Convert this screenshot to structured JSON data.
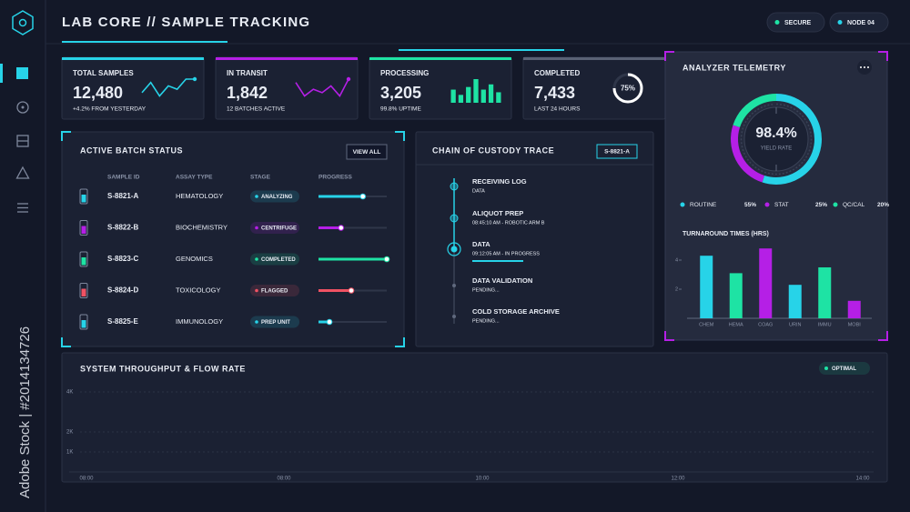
{
  "watermark": "Adobe Stock | #2014134726",
  "header": {
    "title": "LAB CORE // SAMPLE TRACKING",
    "badges": [
      {
        "label": "SECURE",
        "color": "#1ee3a4"
      },
      {
        "label": "NODE 04",
        "color": "#27d3e8"
      }
    ]
  },
  "kpis": [
    {
      "label": "TOTAL SAMPLES",
      "value": "12,480",
      "note": "+4.2% FROM YESTERDAY",
      "color": "#27d3e8",
      "chart": {
        "type": "line",
        "values": [
          3,
          6,
          2,
          5,
          4,
          7,
          7
        ]
      }
    },
    {
      "label": "IN TRANSIT",
      "value": "1,842",
      "note": "12 BATCHES ACTIVE",
      "color": "#b51fe6",
      "chart": {
        "type": "line",
        "values": [
          6,
          2,
          4,
          3,
          5,
          2,
          7
        ]
      }
    },
    {
      "label": "PROCESSING",
      "value": "3,205",
      "note": "99.8% UPTIME",
      "color": "#1ee3a4",
      "chart": {
        "type": "bar",
        "values": [
          5,
          3,
          6,
          9,
          5,
          7,
          4
        ]
      }
    },
    {
      "label": "COMPLETED",
      "value": "7,433",
      "note": "LAST 24 HOURS",
      "color": "#5a6275",
      "chart": {
        "type": "ring",
        "value": 75,
        "value_label": "75%"
      }
    }
  ],
  "batch": {
    "title": "ACTIVE BATCH STATUS",
    "button": "VIEW ALL",
    "columns": [
      "SAMPLE ID",
      "ASSAY TYPE",
      "STAGE",
      "PROGRESS"
    ],
    "rows": [
      {
        "id": "S-8821-A",
        "assay": "HEMATOLOGY",
        "stage": "ANALYZING",
        "progress": 65,
        "color": "#27d3e8"
      },
      {
        "id": "S-8822-B",
        "assay": "BIOCHEMISTRY",
        "stage": "CENTRIFUGE",
        "progress": 33,
        "color": "#b51fe6"
      },
      {
        "id": "S-8823-C",
        "assay": "GENOMICS",
        "stage": "COMPLETED",
        "progress": 100,
        "color": "#1ee3a4"
      },
      {
        "id": "S-8824-D",
        "assay": "TOXICOLOGY",
        "stage": "FLAGGED",
        "progress": 48,
        "color": "#f05263"
      },
      {
        "id": "S-8825-E",
        "assay": "IMMUNOLOGY",
        "stage": "PREP UNIT",
        "progress": 16,
        "color": "#27d3e8"
      }
    ]
  },
  "custody": {
    "title": "CHAIN OF CUSTODY TRACE",
    "tag": "S-8821-A",
    "steps": [
      {
        "title": "RECEIVING LOG",
        "detail": "DATA",
        "state": "done"
      },
      {
        "title": "ALIQUOT PREP",
        "detail": "08:45:10 AM - ROBOTIC ARM B",
        "state": "done"
      },
      {
        "title": "DATA",
        "detail": "09:12:05 AM - IN PROGRESS",
        "state": "active"
      },
      {
        "title": "DATA VALIDATION",
        "detail": "PENDING...",
        "state": "pending"
      },
      {
        "title": "COLD STORAGE ARCHIVE",
        "detail": "PENDING...",
        "state": "pending"
      }
    ]
  },
  "telemetry": {
    "title": "ANALYZER TELEMETRY",
    "yield": {
      "value": 98.4,
      "value_label": "98.4%",
      "label": "YIELD RATE"
    },
    "mix": [
      {
        "name": "ROUTINE",
        "value": 55,
        "value_label": "55%",
        "color": "#27d3e8"
      },
      {
        "name": "STAT",
        "value": 25,
        "value_label": "25%",
        "color": "#b51fe6"
      },
      {
        "name": "QC/CAL",
        "value": 20,
        "value_label": "20%",
        "color": "#1ee3a4"
      }
    ],
    "turnaround": {
      "type": "bar",
      "title": "TURNAROUND TIMES (HRS)",
      "categories": [
        "CHEM",
        "HEMA",
        "COAG",
        "URIN",
        "IMMU",
        "MOBI"
      ],
      "values": [
        4.3,
        3.1,
        4.8,
        2.3,
        3.5,
        1.2
      ],
      "colors": [
        "#27d3e8",
        "#1ee3a4",
        "#b51fe6",
        "#27d3e8",
        "#1ee3a4",
        "#b51fe6"
      ],
      "ylim": [
        0,
        5
      ],
      "yticks": [
        2,
        4
      ]
    }
  },
  "throughput": {
    "type": "line",
    "title": "SYSTEM THROUGHPUT & FLOW RATE",
    "status": "OPTIMAL",
    "categories": [
      "08:00",
      "08:00",
      "10:00",
      "12:00",
      "14:00"
    ],
    "ylim": [
      0,
      4500
    ],
    "yticks": [
      {
        "value": 1000,
        "label": "1K"
      },
      {
        "value": 2000,
        "label": "2K"
      },
      {
        "value": 4000,
        "label": "4K"
      }
    ],
    "grid": true
  }
}
